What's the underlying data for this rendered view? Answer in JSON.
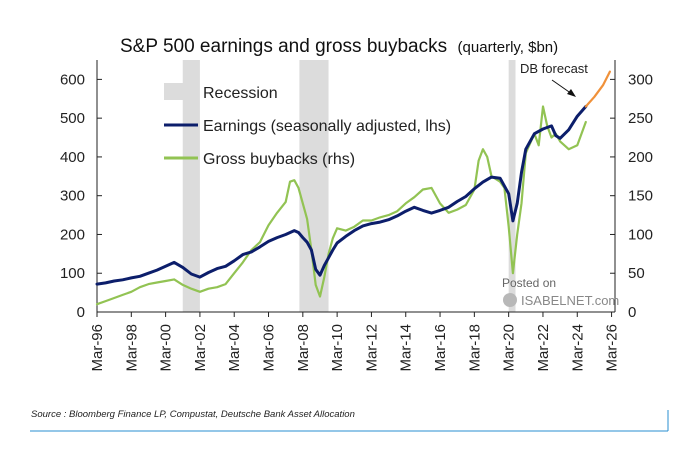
{
  "chart_data": {
    "type": "line",
    "title": "S&P 500 earnings and gross buybacks",
    "subtitle": "(quarterly, $bn)",
    "x_tick_labels": [
      "Mar-96",
      "Mar-98",
      "Mar-00",
      "Mar-02",
      "Mar-04",
      "Mar-06",
      "Mar-08",
      "Mar-10",
      "Mar-12",
      "Mar-14",
      "Mar-16",
      "Mar-18",
      "Mar-20",
      "Mar-22",
      "Mar-24",
      "Mar-26"
    ],
    "xlim": [
      1996.0,
      2026.2
    ],
    "y_left": {
      "ticks": [
        0,
        100,
        200,
        300,
        400,
        500,
        600
      ],
      "ylim": [
        0,
        650
      ],
      "label": ""
    },
    "y_right": {
      "ticks": [
        0,
        50,
        100,
        150,
        200,
        250,
        300
      ],
      "ylim": [
        0,
        325
      ],
      "label": ""
    },
    "recessions": [
      {
        "name": "Recession",
        "start": 2001.0,
        "end": 2002.0
      },
      {
        "name": "Recession",
        "start": 2007.8,
        "end": 2009.5
      },
      {
        "name": "Recession",
        "start": 2020.0,
        "end": 2020.4
      }
    ],
    "series": [
      {
        "name": "Earnings (seasonally adjusted, lhs)",
        "axis": "left",
        "color": "#0c1e6b",
        "x": [
          1996.0,
          1996.5,
          1997.0,
          1997.5,
          1998.0,
          1998.5,
          1999.0,
          1999.5,
          2000.0,
          2000.5,
          2001.0,
          2001.5,
          2002.0,
          2002.5,
          2003.0,
          2003.5,
          2004.0,
          2004.5,
          2005.0,
          2005.5,
          2006.0,
          2006.5,
          2007.0,
          2007.5,
          2007.75,
          2008.0,
          2008.25,
          2008.5,
          2008.75,
          2009.0,
          2009.25,
          2009.5,
          2009.75,
          2010.0,
          2010.5,
          2011.0,
          2011.5,
          2012.0,
          2012.5,
          2013.0,
          2013.5,
          2014.0,
          2014.5,
          2015.0,
          2015.5,
          2016.0,
          2016.5,
          2017.0,
          2017.5,
          2018.0,
          2018.5,
          2019.0,
          2019.5,
          2020.0,
          2020.25,
          2020.5,
          2020.75,
          2021.0,
          2021.5,
          2022.0,
          2022.5,
          2022.75,
          2023.0,
          2023.5,
          2024.0,
          2024.5
        ],
        "values": [
          72,
          75,
          80,
          83,
          88,
          92,
          100,
          108,
          118,
          128,
          115,
          98,
          90,
          102,
          112,
          118,
          132,
          148,
          155,
          168,
          182,
          192,
          200,
          210,
          205,
          192,
          180,
          160,
          110,
          95,
          120,
          140,
          160,
          178,
          195,
          210,
          222,
          228,
          232,
          238,
          248,
          260,
          270,
          262,
          255,
          262,
          270,
          285,
          298,
          318,
          335,
          348,
          345,
          305,
          235,
          280,
          360,
          420,
          460,
          472,
          480,
          455,
          448,
          470,
          505,
          530
        ]
      },
      {
        "name": "Gross buybacks (rhs)",
        "axis": "right",
        "color": "#92c353",
        "x": [
          1996.0,
          1996.5,
          1997.0,
          1997.5,
          1998.0,
          1998.5,
          1999.0,
          1999.5,
          2000.0,
          2000.5,
          2001.0,
          2001.5,
          2002.0,
          2002.5,
          2003.0,
          2003.5,
          2004.0,
          2004.5,
          2005.0,
          2005.5,
          2006.0,
          2006.5,
          2007.0,
          2007.25,
          2007.5,
          2007.75,
          2008.0,
          2008.25,
          2008.5,
          2008.75,
          2009.0,
          2009.25,
          2009.5,
          2009.75,
          2010.0,
          2010.5,
          2011.0,
          2011.5,
          2012.0,
          2012.5,
          2013.0,
          2013.5,
          2014.0,
          2014.5,
          2015.0,
          2015.5,
          2016.0,
          2016.5,
          2017.0,
          2017.5,
          2018.0,
          2018.25,
          2018.5,
          2018.75,
          2019.0,
          2019.5,
          2019.75,
          2020.0,
          2020.25,
          2020.5,
          2020.75,
          2021.0,
          2021.5,
          2021.75,
          2022.0,
          2022.25,
          2022.5,
          2022.75,
          2023.0,
          2023.5,
          2024.0,
          2024.5
        ],
        "values": [
          10,
          14,
          18,
          22,
          26,
          32,
          36,
          38,
          40,
          42,
          35,
          30,
          26,
          30,
          32,
          36,
          50,
          64,
          80,
          90,
          112,
          128,
          142,
          168,
          170,
          160,
          140,
          120,
          80,
          35,
          20,
          45,
          75,
          95,
          108,
          105,
          110,
          118,
          118,
          122,
          125,
          130,
          140,
          148,
          158,
          160,
          140,
          128,
          132,
          138,
          158,
          195,
          210,
          200,
          175,
          168,
          160,
          110,
          50,
          100,
          140,
          205,
          230,
          215,
          265,
          240,
          225,
          230,
          220,
          210,
          215,
          245
        ]
      },
      {
        "name": "DB forecast",
        "axis": "left",
        "color": "#f0913a",
        "x": [
          2024.5,
          2025.0,
          2025.5,
          2025.9
        ],
        "values": [
          530,
          555,
          585,
          620
        ]
      }
    ],
    "legend": [
      {
        "label": "Recession",
        "kind": "box",
        "color": "#dcdcdc"
      },
      {
        "label": "Earnings (seasonally adjusted, lhs)",
        "kind": "line",
        "color": "#0c1e6b"
      },
      {
        "label": "Gross buybacks (rhs)",
        "kind": "line",
        "color": "#92c353"
      }
    ],
    "annotations": [
      {
        "text": "DB forecast",
        "points_to_x": 2024.5,
        "points_to_value": 540
      }
    ]
  },
  "source": "Source : Bloomberg Finance LP, Compustat, Deutsche Bank Asset Allocation",
  "watermark": {
    "line1": "Posted on",
    "line2": "ISABELNET.com"
  }
}
